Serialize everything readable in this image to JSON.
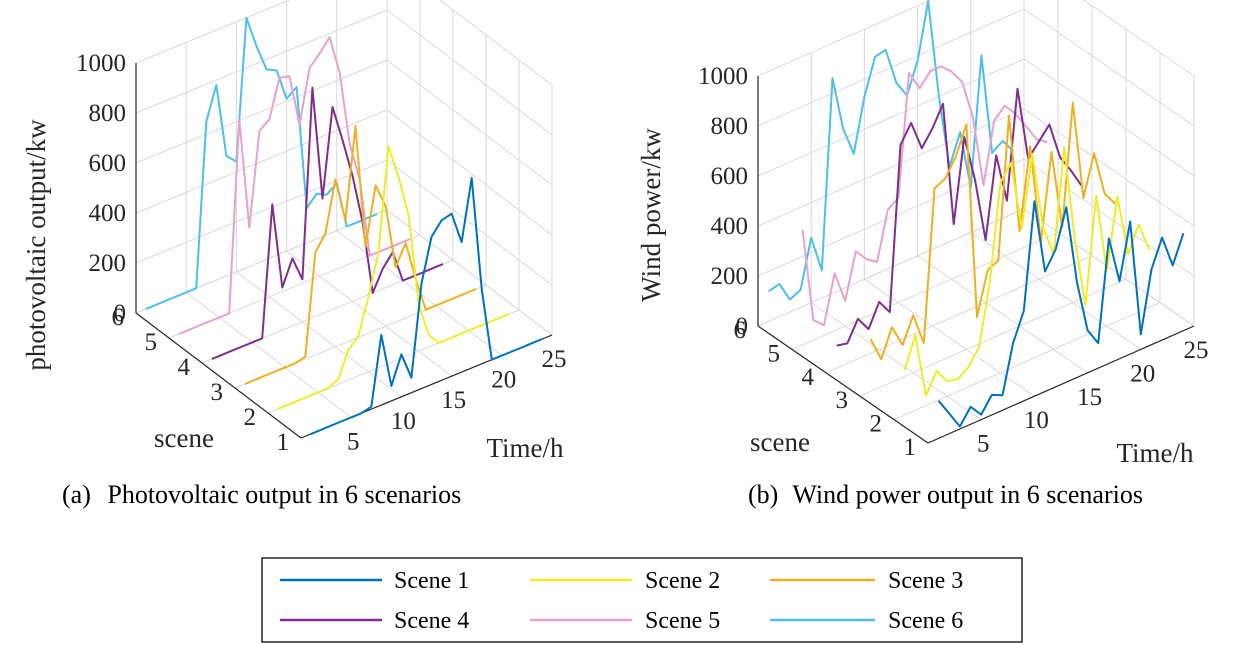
{
  "chart_data": [
    {
      "type": "line",
      "projection": "3d",
      "title": "",
      "caption_label": "(a)",
      "caption_text": "Photovoltaic output in 6 scenarios",
      "xlabel": "Time/h",
      "ylabel": "scene",
      "zlabel": "photovoltaic output/kw",
      "xlim": [
        0,
        25
      ],
      "ylim": [
        1,
        6
      ],
      "zlim": [
        0,
        1000
      ],
      "xticks": [
        "5",
        "10",
        "15",
        "20",
        "25"
      ],
      "yticks": [
        "1",
        "2",
        "3",
        "4",
        "5",
        "6"
      ],
      "zticks": [
        "0",
        "200",
        "400",
        "600",
        "800",
        "1000"
      ],
      "grid": true,
      "x": [
        1,
        2,
        3,
        4,
        5,
        6,
        7,
        8,
        9,
        10,
        11,
        12,
        13,
        14,
        15,
        16,
        17,
        18,
        19,
        20,
        21,
        22,
        23,
        24
      ],
      "series": [
        {
          "name": "Scene 1",
          "scene": 1,
          "values": [
            0,
            0,
            0,
            0,
            0,
            0,
            10,
            280,
            60,
            170,
            60,
            420,
            590,
            640,
            650,
            520,
            760,
            300,
            0,
            0,
            0,
            0,
            0,
            0
          ]
        },
        {
          "name": "Scene 2",
          "scene": 2,
          "values": [
            0,
            0,
            0,
            0,
            0,
            0,
            20,
            120,
            160,
            300,
            460,
            870,
            730,
            560,
            190,
            50,
            0,
            0,
            0,
            0,
            0,
            0,
            0,
            0
          ]
        },
        {
          "name": "Scene 3",
          "scene": 3,
          "values": [
            0,
            0,
            0,
            0,
            0,
            0,
            10,
            410,
            470,
            670,
            490,
            850,
            350,
            580,
            480,
            220,
            300,
            140,
            0,
            0,
            0,
            0,
            0,
            0
          ]
        },
        {
          "name": "Scene 4",
          "scene": 4,
          "values": [
            0,
            0,
            0,
            0,
            0,
            0,
            520,
            170,
            270,
            170,
            920,
            460,
            810,
            660,
            500,
            300,
            0,
            80,
            130,
            0,
            0,
            0,
            0,
            0
          ]
        },
        {
          "name": "Scene 5",
          "scene": 5,
          "values": [
            0,
            0,
            0,
            0,
            0,
            0,
            760,
            310,
            680,
            710,
            860,
            850,
            640,
            850,
            890,
            940,
            780,
            480,
            320,
            0,
            0,
            0,
            0,
            0
          ]
        },
        {
          "name": "Scene 6",
          "scene": 6,
          "values": [
            0,
            0,
            0,
            0,
            0,
            0,
            650,
            780,
            480,
            440,
            1000,
            870,
            760,
            740,
            610,
            640,
            140,
            180,
            160,
            190,
            0,
            0,
            0,
            0
          ]
        }
      ]
    },
    {
      "type": "line",
      "projection": "3d",
      "title": "",
      "caption_label": "(b)",
      "caption_text": "Wind power output in 6 scenarios",
      "xlabel": "Time/h",
      "ylabel": "scene",
      "zlabel": "Wind power/kw",
      "xlim": [
        0,
        25
      ],
      "ylim": [
        1,
        6
      ],
      "zlim": [
        0,
        1000
      ],
      "xticks": [
        "5",
        "10",
        "15",
        "20",
        "25"
      ],
      "yticks": [
        "1",
        "2",
        "3",
        "4",
        "5",
        "6"
      ],
      "zticks": [
        "0",
        "200",
        "400",
        "600",
        "800",
        "1000"
      ],
      "grid": true,
      "x": [
        1,
        2,
        3,
        4,
        5,
        6,
        7,
        8,
        9,
        10,
        11,
        12,
        13,
        14,
        15,
        16,
        17,
        18,
        19,
        20,
        21,
        22,
        23,
        24
      ],
      "series": [
        {
          "name": "Scene 1",
          "scene": 1,
          "values": [
            150,
            80,
            10,
            70,
            20,
            80,
            60,
            250,
            360,
            780,
            480,
            550,
            700,
            380,
            170,
            100,
            500,
            310,
            530,
            60,
            300,
            410,
            280,
            390
          ]
        },
        {
          "name": "Scene 2",
          "scene": 2,
          "values": [
            180,
            300,
            40,
            120,
            60,
            50,
            80,
            140,
            380,
            760,
            820,
            540,
            820,
            510,
            380,
            790,
            400,
            120,
            540,
            220,
            500,
            250,
            350,
            230
          ]
        },
        {
          "name": "Scene 3",
          "scene": 3,
          "values": [
            210,
            110,
            220,
            130,
            230,
            100,
            700,
            720,
            790,
            900,
            110,
            280,
            300,
            860,
            380,
            700,
            300,
            640,
            320,
            800,
            400,
            560,
            380,
            320
          ]
        },
        {
          "name": "Scene 4",
          "scene": 4,
          "values": [
            90,
            80,
            160,
            100,
            190,
            130,
            780,
            850,
            730,
            790,
            870,
            370,
            700,
            510,
            250,
            570,
            370,
            800,
            500,
            550,
            600,
            450,
            380,
            300
          ]
        },
        {
          "name": "Scene 5",
          "scene": 5,
          "values": [
            460,
            80,
            40,
            230,
            100,
            280,
            230,
            200,
            390,
            420,
            900,
            820,
            870,
            870,
            830,
            770,
            610,
            320,
            560,
            600,
            550,
            480,
            410,
            380
          ]
        },
        {
          "name": "Scene 6",
          "scene": 6,
          "values": [
            120,
            130,
            50,
            70,
            260,
            110,
            860,
            640,
            520,
            730,
            870,
            880,
            730,
            660,
            780,
            1000,
            600,
            300,
            420,
            180,
            690,
            280,
            310,
            250
          ]
        }
      ]
    }
  ],
  "legend": {
    "items": [
      {
        "label": "Scene 1",
        "color": "#0072BD"
      },
      {
        "label": "Scene 2",
        "color": "#EDED2A"
      },
      {
        "label": "Scene 3",
        "color": "#EDB120"
      },
      {
        "label": "Scene 4",
        "color": "#7E2F8E"
      },
      {
        "label": "Scene 5",
        "color": "#E3A3CF"
      },
      {
        "label": "Scene 6",
        "color": "#4DBEEE"
      }
    ]
  },
  "colors": {
    "grid": "#d9d9d9",
    "axis": "#262626"
  }
}
